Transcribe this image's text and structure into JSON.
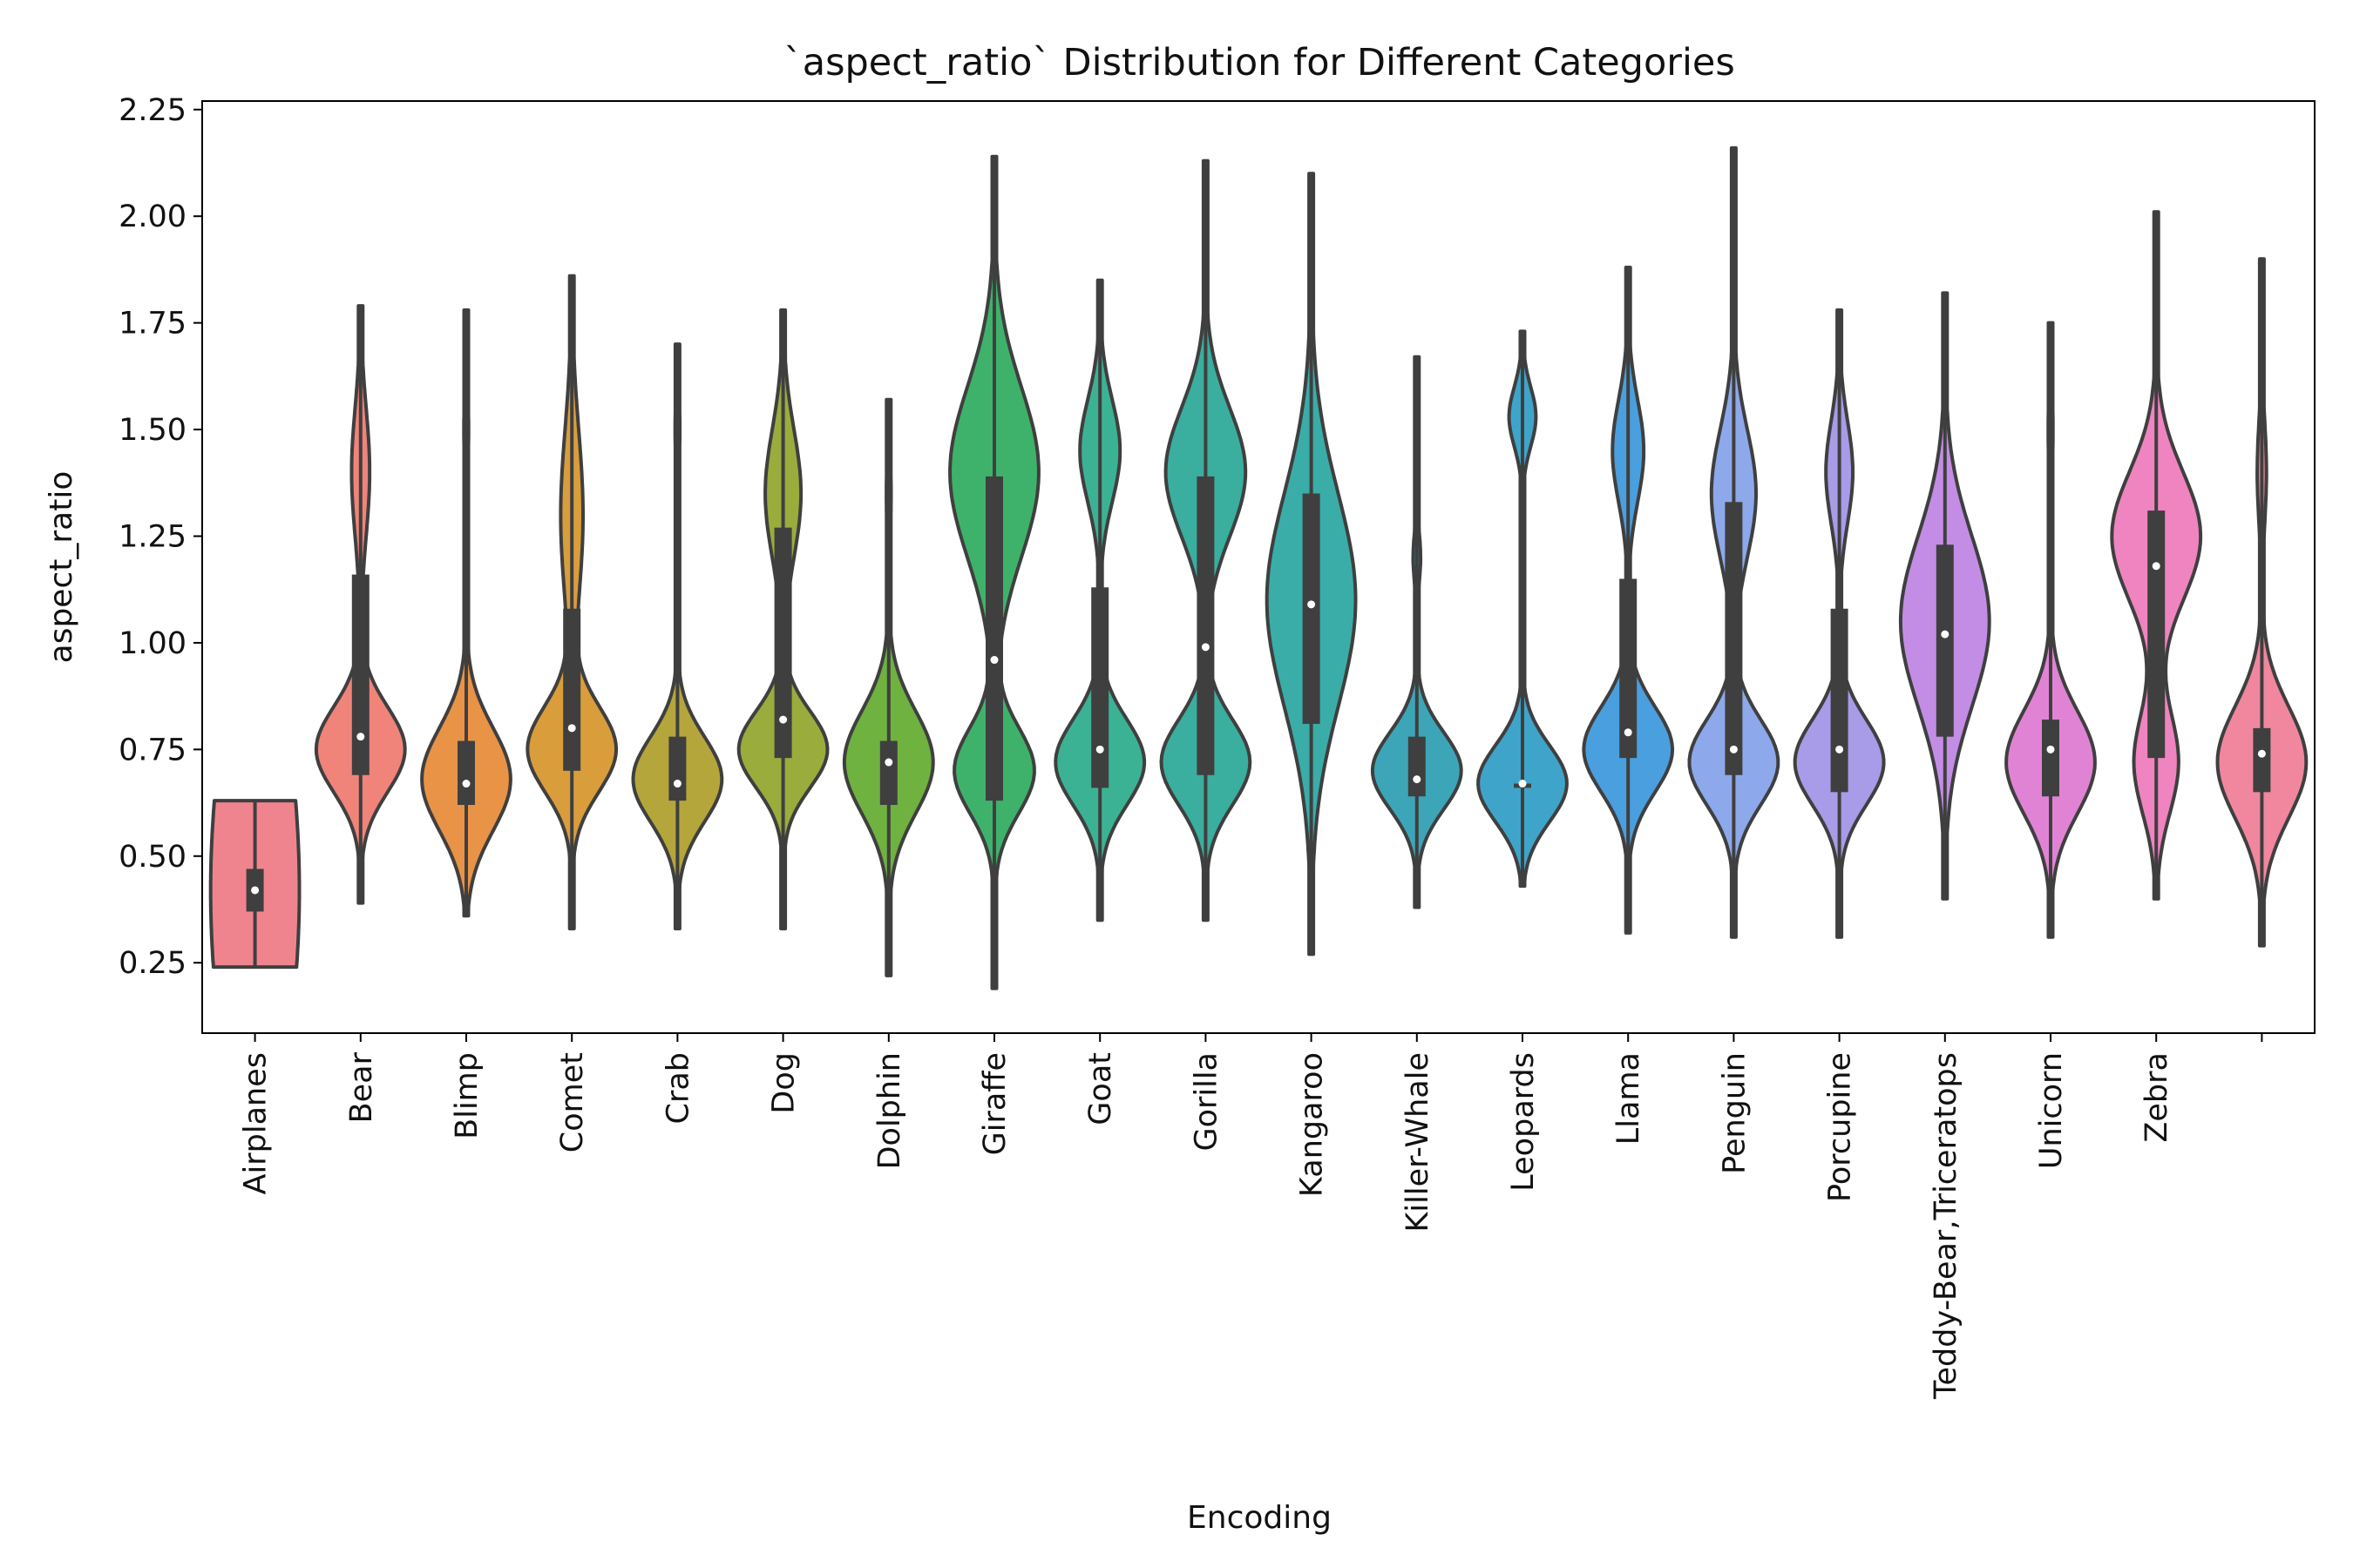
{
  "chart_data": {
    "type": "violin",
    "title": "`aspect_ratio` Distribution for Different Categories",
    "xlabel": "Encoding",
    "ylabel": "aspect_ratio",
    "ylim": [
      0.085,
      2.27
    ],
    "yticks": [
      0.25,
      0.5,
      0.75,
      1.0,
      1.25,
      1.5,
      1.75,
      2.0,
      2.25
    ],
    "ytick_labels": [
      "0.25",
      "0.50",
      "0.75",
      "1.00",
      "1.25",
      "1.50",
      "1.75",
      "2.00",
      "2.25"
    ],
    "categories": [
      "Airplanes",
      "Bear",
      "Blimp",
      "Comet",
      "Crab",
      "Dog",
      "Dolphin",
      "Giraffe",
      "Goat",
      "Gorilla",
      "Kangaroo",
      "Killer-Whale",
      "Leopards",
      "Llama",
      "Penguin",
      "Porcupine",
      "Teddy-Bear,Triceratops",
      "Unicorn",
      "Zebra",
      ""
    ],
    "grid": false,
    "series": [
      {
        "min": 0.24,
        "q1": 0.37,
        "median": 0.42,
        "q3": 0.47,
        "max": 0.63,
        "color": "#f0848e",
        "modes": [
          [
            0.42,
            0.5,
            1.0
          ]
        ]
      },
      {
        "min": 0.39,
        "q1": 0.69,
        "median": 0.78,
        "q3": 1.16,
        "max": 1.79,
        "color": "#f0847a",
        "modes": [
          [
            0.75,
            0.1,
            1.0
          ],
          [
            1.4,
            0.15,
            0.2
          ]
        ]
      },
      {
        "min": 0.36,
        "q1": 0.62,
        "median": 0.67,
        "q3": 0.77,
        "max": 1.78,
        "color": "#e99347",
        "modes": [
          [
            0.68,
            0.12,
            1.0
          ],
          [
            1.5,
            0.08,
            0.05
          ]
        ]
      },
      {
        "min": 0.33,
        "q1": 0.7,
        "median": 0.8,
        "q3": 1.08,
        "max": 1.86,
        "color": "#d99d3b",
        "modes": [
          [
            0.75,
            0.1,
            1.0
          ],
          [
            1.3,
            0.2,
            0.25
          ]
        ]
      },
      {
        "min": 0.33,
        "q1": 0.63,
        "median": 0.67,
        "q3": 0.78,
        "max": 1.7,
        "color": "#b5a63b",
        "modes": [
          [
            0.68,
            0.1,
            1.0
          ],
          [
            1.5,
            0.1,
            0.05
          ]
        ]
      },
      {
        "min": 0.33,
        "q1": 0.73,
        "median": 0.82,
        "q3": 1.27,
        "max": 1.78,
        "color": "#9aac3c",
        "modes": [
          [
            0.75,
            0.09,
            1.0
          ],
          [
            1.35,
            0.15,
            0.4
          ]
        ]
      },
      {
        "min": 0.22,
        "q1": 0.62,
        "median": 0.72,
        "q3": 0.77,
        "max": 1.57,
        "color": "#6fb23f",
        "modes": [
          [
            0.72,
            0.12,
            1.0
          ],
          [
            1.35,
            0.1,
            0.05
          ]
        ]
      },
      {
        "min": 0.19,
        "q1": 0.63,
        "median": 0.96,
        "q3": 1.39,
        "max": 2.14,
        "color": "#3eb26b",
        "modes": [
          [
            0.7,
            0.1,
            0.9
          ],
          [
            1.4,
            0.2,
            1.0
          ]
        ]
      },
      {
        "min": 0.35,
        "q1": 0.66,
        "median": 0.75,
        "q3": 1.13,
        "max": 1.85,
        "color": "#3cb294",
        "modes": [
          [
            0.72,
            0.1,
            1.0
          ],
          [
            1.45,
            0.12,
            0.45
          ]
        ]
      },
      {
        "min": 0.35,
        "q1": 0.69,
        "median": 0.99,
        "q3": 1.39,
        "max": 2.13,
        "color": "#3aae9f",
        "modes": [
          [
            0.72,
            0.1,
            1.0
          ],
          [
            1.4,
            0.15,
            0.9
          ]
        ]
      },
      {
        "min": 0.27,
        "q1": 0.81,
        "median": 1.09,
        "q3": 1.35,
        "max": 2.1,
        "color": "#3aada8",
        "modes": [
          [
            1.1,
            0.25,
            1.0
          ]
        ]
      },
      {
        "min": 0.38,
        "q1": 0.64,
        "median": 0.68,
        "q3": 0.78,
        "max": 1.67,
        "color": "#3ca6b8",
        "modes": [
          [
            0.7,
            0.09,
            1.0
          ],
          [
            1.2,
            0.06,
            0.08
          ]
        ]
      },
      {
        "min": 0.43,
        "q1": 0.66,
        "median": 0.67,
        "q3": 0.67,
        "max": 1.73,
        "color": "#3fa4c9",
        "modes": [
          [
            0.67,
            0.09,
            1.0
          ],
          [
            1.53,
            0.07,
            0.3
          ]
        ]
      },
      {
        "min": 0.32,
        "q1": 0.73,
        "median": 0.79,
        "q3": 1.15,
        "max": 1.88,
        "color": "#4a9fde",
        "modes": [
          [
            0.75,
            0.1,
            1.0
          ],
          [
            1.45,
            0.12,
            0.35
          ]
        ]
      },
      {
        "min": 0.31,
        "q1": 0.69,
        "median": 0.75,
        "q3": 1.33,
        "max": 2.16,
        "color": "#8da9ec",
        "modes": [
          [
            0.72,
            0.1,
            1.0
          ],
          [
            1.35,
            0.15,
            0.5
          ]
        ]
      },
      {
        "min": 0.31,
        "q1": 0.65,
        "median": 0.75,
        "q3": 1.08,
        "max": 1.78,
        "color": "#a89be8",
        "modes": [
          [
            0.72,
            0.1,
            1.0
          ],
          [
            1.4,
            0.12,
            0.3
          ]
        ]
      },
      {
        "min": 0.4,
        "q1": 0.78,
        "median": 1.02,
        "q3": 1.23,
        "max": 1.82,
        "color": "#c38de6",
        "modes": [
          [
            1.05,
            0.2,
            1.0
          ]
        ]
      },
      {
        "min": 0.31,
        "q1": 0.64,
        "median": 0.75,
        "q3": 0.82,
        "max": 1.75,
        "color": "#e183d5",
        "modes": [
          [
            0.72,
            0.12,
            1.0
          ],
          [
            1.5,
            0.1,
            0.05
          ]
        ]
      },
      {
        "min": 0.4,
        "q1": 0.73,
        "median": 1.18,
        "q3": 1.31,
        "max": 2.01,
        "color": "#ef84c0",
        "modes": [
          [
            0.72,
            0.12,
            0.5
          ],
          [
            1.25,
            0.15,
            1.0
          ]
        ]
      },
      {
        "min": 0.29,
        "q1": 0.65,
        "median": 0.74,
        "q3": 0.8,
        "max": 1.9,
        "color": "#f0879f",
        "modes": [
          [
            0.72,
            0.13,
            1.0
          ],
          [
            1.4,
            0.12,
            0.1
          ]
        ]
      }
    ]
  }
}
